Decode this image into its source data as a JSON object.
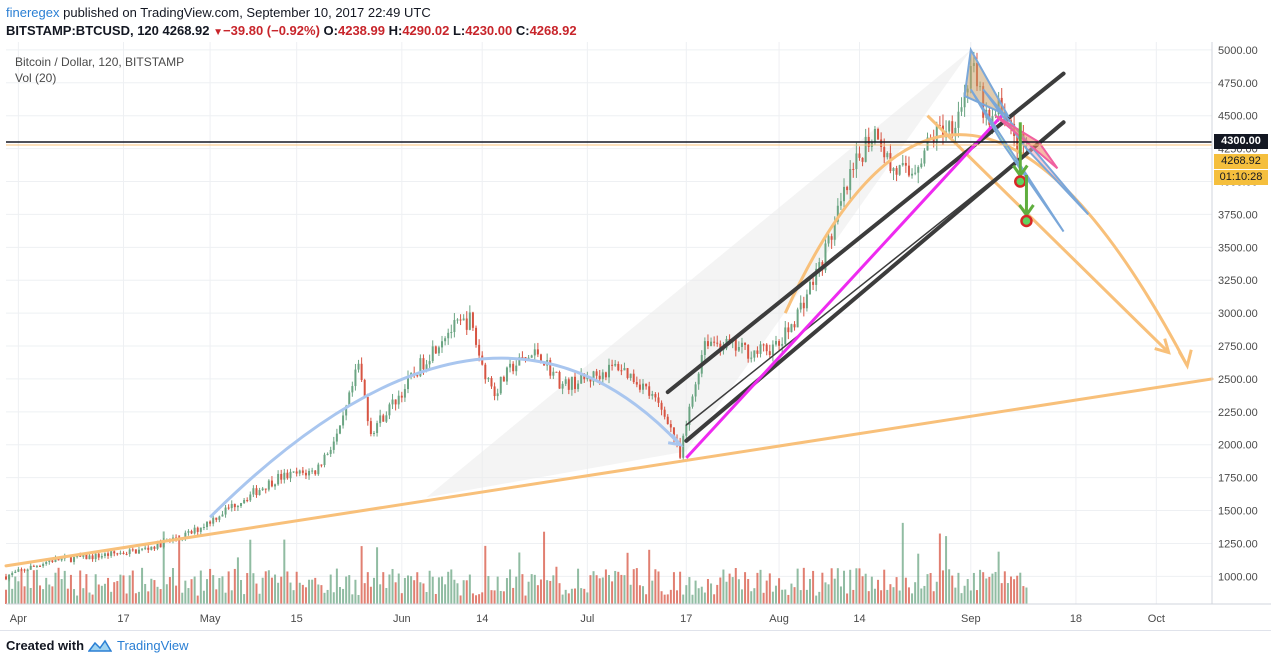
{
  "header": {
    "author": "fineregex",
    "published": "published on TradingView.com, September 10, 2017 22:49 UTC",
    "symbol": "BITSTAMP:BTCUSD, 120",
    "last": "4268.92",
    "change": "−39.80 (−0.92%)",
    "o_label": "O:",
    "o_val": "4238.99",
    "h_label": "H:",
    "h_val": "4290.02",
    "l_label": "L:",
    "l_val": "4230.00",
    "c_label": "C:",
    "c_val": "4268.92"
  },
  "legend": {
    "title": "Bitcoin / Dollar, 120, BITSTAMP",
    "indicator": "Vol (20)"
  },
  "price_tags": {
    "level": "4300.00",
    "last": "4268.92",
    "countdown": "01:10:28"
  },
  "footer": {
    "created_with": "Created with",
    "brand": "TradingView"
  },
  "colors": {
    "up": "#6ba583",
    "down": "#d75442",
    "blue_arc": "#a9c6ef",
    "orange": "#f8c07a",
    "magenta": "#ee2af0",
    "dark_line": "#3c3c3c",
    "link": "#2a7fd4"
  },
  "chart_data": {
    "type": "candlestick",
    "title": "Bitcoin / Dollar, 120, BITSTAMP",
    "xlabel": "",
    "ylabel": "",
    "y_ticks": [
      1000,
      1250,
      1500,
      1750,
      2000,
      2250,
      2500,
      2750,
      3000,
      3250,
      3500,
      3750,
      4000,
      4250,
      4500,
      4750,
      5000
    ],
    "y_tick_labels": [
      "1000.00",
      "1250.00",
      "1500.00",
      "1750.00",
      "2000.00",
      "2250.00",
      "2500.00",
      "2750.00",
      "3000.00",
      "3250.00",
      "3500.00",
      "3750.00",
      "4000.00",
      "4250.00",
      "4500.00",
      "4750.00",
      "5000.00"
    ],
    "ylim": [
      790,
      5060
    ],
    "x_tick_labels": [
      "Apr",
      "17",
      "May",
      "15",
      "Jun",
      "14",
      "Jul",
      "17",
      "Aug",
      "14",
      "Sep",
      "18",
      "Oct"
    ],
    "x_tick_dates": [
      "2017-03-31",
      "2017-04-17",
      "2017-05-01",
      "2017-05-15",
      "2017-06-01",
      "2017-06-14",
      "2017-07-01",
      "2017-07-17",
      "2017-08-01",
      "2017-08-14",
      "2017-09-01",
      "2017-09-18",
      "2017-10-01"
    ],
    "x_range": [
      "2017-03-29",
      "2017-10-10"
    ],
    "price_keypoints": [
      [
        "2017-03-29",
        1000
      ],
      [
        "2017-04-05",
        1120
      ],
      [
        "2017-04-12",
        1150
      ],
      [
        "2017-04-20",
        1200
      ],
      [
        "2017-04-28",
        1330
      ],
      [
        "2017-05-05",
        1550
      ],
      [
        "2017-05-12",
        1750
      ],
      [
        "2017-05-18",
        1800
      ],
      [
        "2017-05-22",
        2100
      ],
      [
        "2017-05-25",
        2600
      ],
      [
        "2017-05-27",
        2100
      ],
      [
        "2017-06-01",
        2400
      ],
      [
        "2017-06-04",
        2600
      ],
      [
        "2017-06-08",
        2850
      ],
      [
        "2017-06-12",
        2950
      ],
      [
        "2017-06-14",
        2600
      ],
      [
        "2017-06-16",
        2400
      ],
      [
        "2017-06-19",
        2600
      ],
      [
        "2017-06-23",
        2700
      ],
      [
        "2017-06-27",
        2450
      ],
      [
        "2017-07-01",
        2500
      ],
      [
        "2017-07-06",
        2600
      ],
      [
        "2017-07-10",
        2450
      ],
      [
        "2017-07-14",
        2200
      ],
      [
        "2017-07-16",
        1900
      ],
      [
        "2017-07-17",
        2150
      ],
      [
        "2017-07-20",
        2800
      ],
      [
        "2017-07-24",
        2750
      ],
      [
        "2017-07-28",
        2700
      ],
      [
        "2017-08-01",
        2750
      ],
      [
        "2017-08-04",
        3000
      ],
      [
        "2017-08-08",
        3400
      ],
      [
        "2017-08-12",
        3950
      ],
      [
        "2017-08-15",
        4300
      ],
      [
        "2017-08-17",
        4400
      ],
      [
        "2017-08-19",
        4100
      ],
      [
        "2017-08-22",
        4050
      ],
      [
        "2017-08-26",
        4350
      ],
      [
        "2017-08-29",
        4450
      ],
      [
        "2017-08-31",
        4650
      ],
      [
        "2017-09-01",
        4900
      ],
      [
        "2017-09-02",
        4700
      ],
      [
        "2017-09-04",
        4400
      ],
      [
        "2017-09-06",
        4600
      ],
      [
        "2017-09-08",
        4300
      ],
      [
        "2017-09-10",
        4269
      ]
    ],
    "volume_range": [
      0,
      1700
    ],
    "annotations": {
      "horizontal_level": 4300,
      "last_price": 4268.92,
      "target_markers": [
        [
          "2017-09-09",
          4000
        ],
        [
          "2017-09-10",
          3700
        ]
      ],
      "orange_arrow_targets": [
        [
          "2017-10-03",
          2700
        ],
        [
          "2017-10-06",
          2600
        ]
      ]
    }
  }
}
